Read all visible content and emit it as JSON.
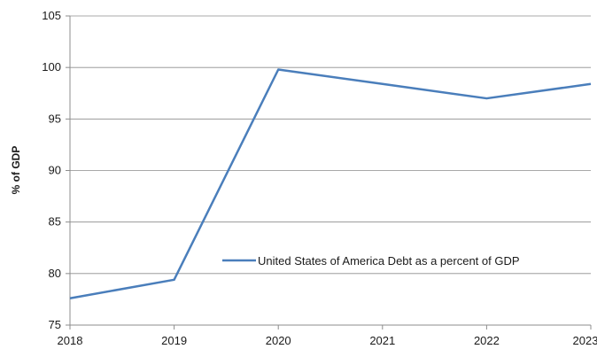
{
  "chart_data": {
    "type": "line",
    "title": "",
    "xlabel": "",
    "ylabel": "% of GDP",
    "x": [
      "2018",
      "2019",
      "2020",
      "2021",
      "2022",
      "2023"
    ],
    "ylim": [
      75,
      105
    ],
    "yticks": [
      75,
      80,
      85,
      90,
      95,
      100,
      105
    ],
    "grid": "horizontal",
    "legend_position": "center-right",
    "series": [
      {
        "name": "United States of America Debt as a percent of GDP",
        "color": "#4a7ebb",
        "values": [
          77.6,
          79.4,
          99.8,
          98.4,
          97.0,
          98.4
        ]
      }
    ]
  }
}
